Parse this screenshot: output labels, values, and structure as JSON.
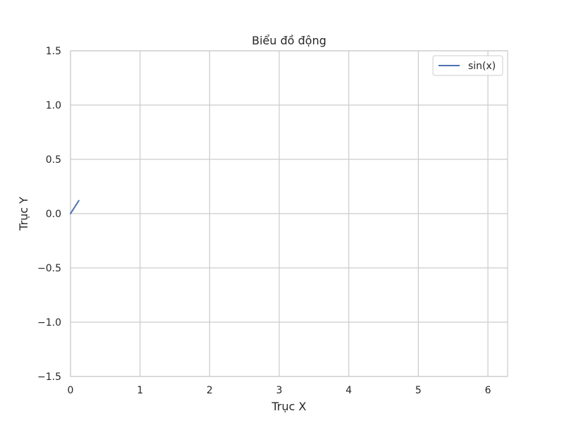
{
  "chart_data": {
    "type": "line",
    "title": "Biểu đồ động",
    "xlabel": "Trục X",
    "ylabel": "Trục Y",
    "xlim": [
      0,
      6.283
    ],
    "ylim": [
      -1.5,
      1.5
    ],
    "xticks": [
      0,
      1,
      2,
      3,
      4,
      5,
      6
    ],
    "yticks": [
      -1.5,
      -1.0,
      -0.5,
      0.0,
      0.5,
      1.0,
      1.5
    ],
    "ytick_labels": [
      "−1.5",
      "−1.0",
      "−0.5",
      "0.0",
      "0.5",
      "1.0",
      "1.5"
    ],
    "grid": true,
    "legend_position": "top-right",
    "series": [
      {
        "name": "sin(x)",
        "color": "#4c72b0",
        "x": [
          0,
          0.02,
          0.04,
          0.06,
          0.08,
          0.1,
          0.12
        ],
        "y": [
          0,
          0.02,
          0.04,
          0.06,
          0.08,
          0.0998,
          0.1197
        ]
      }
    ]
  }
}
